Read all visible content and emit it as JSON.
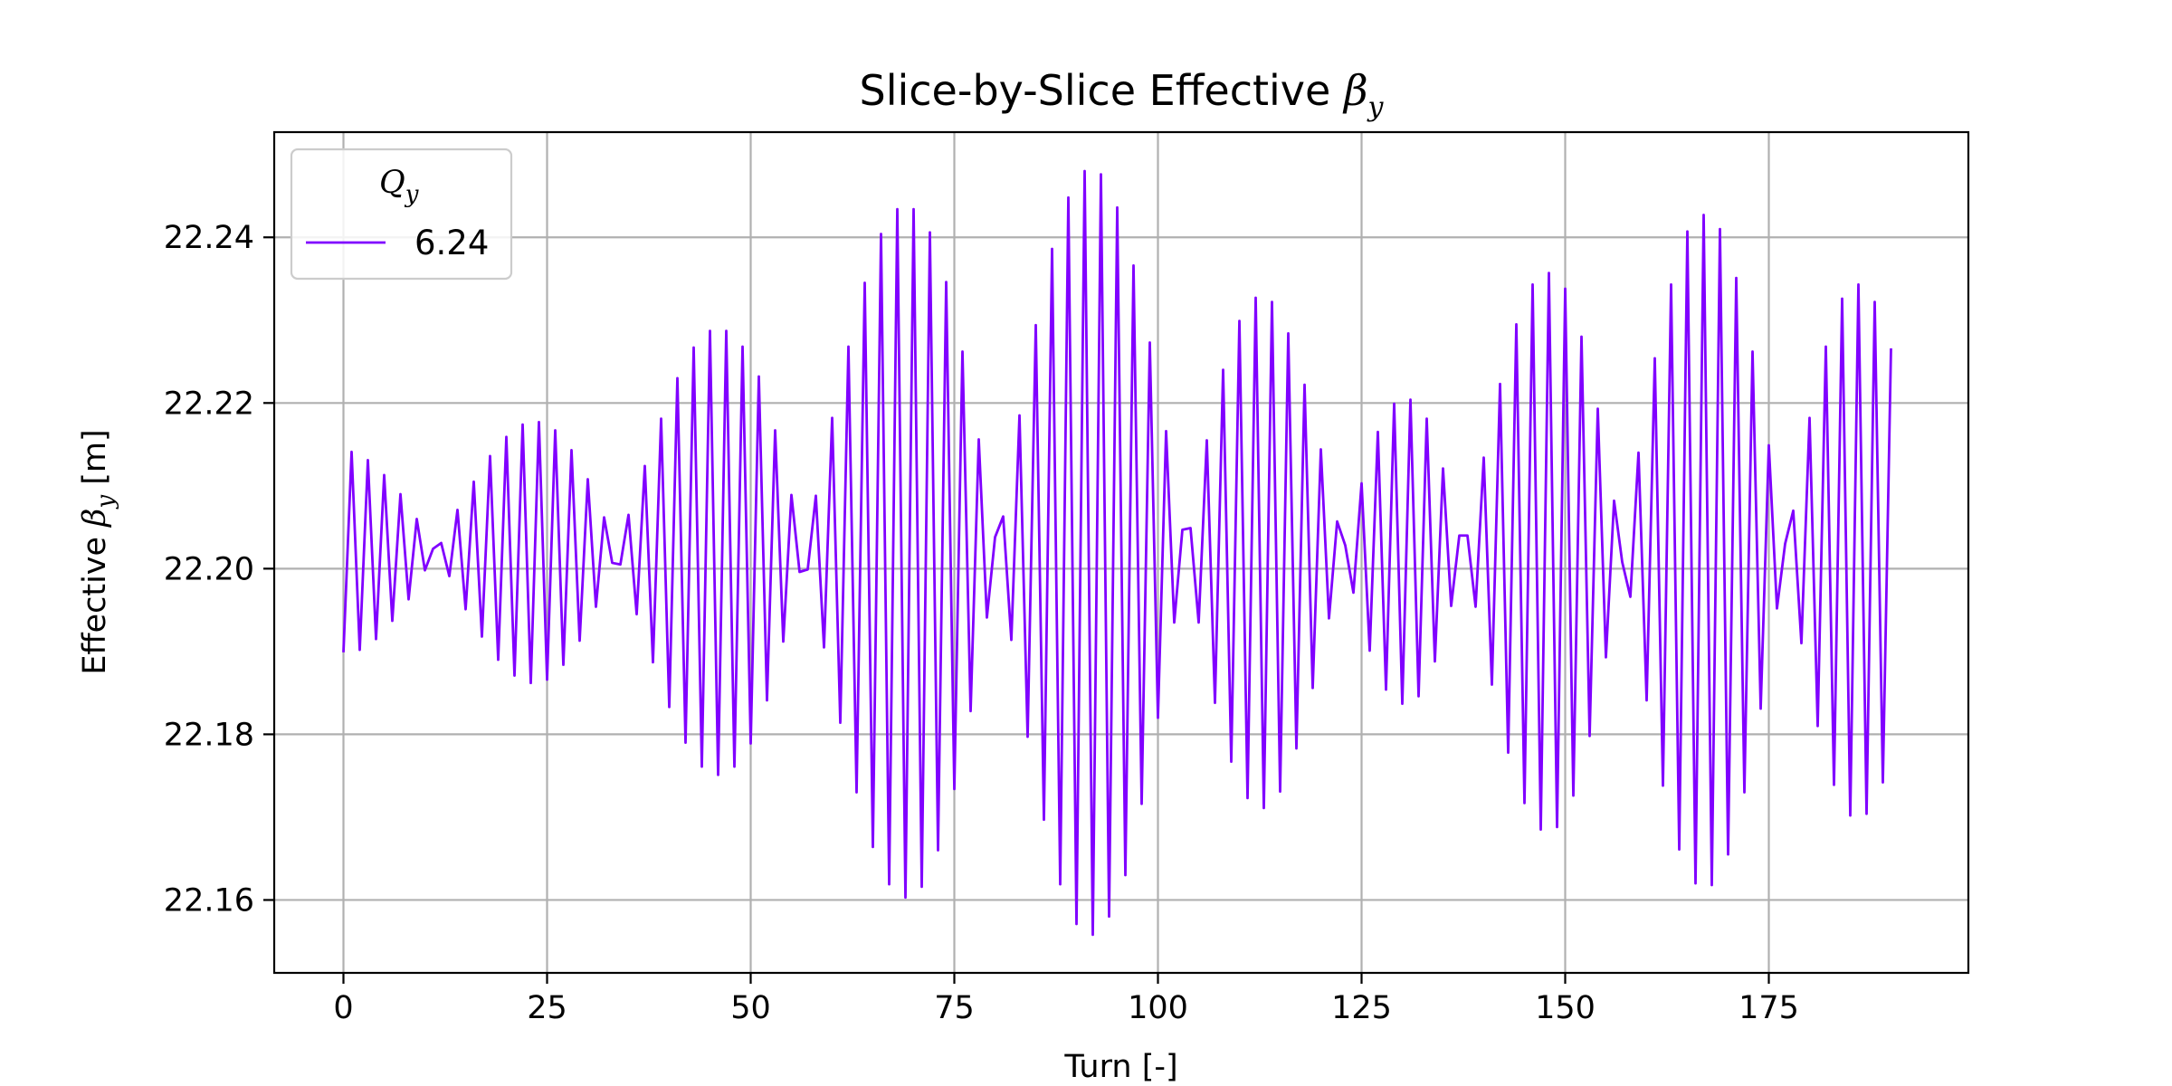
{
  "chart_data": {
    "type": "line",
    "title": "Slice-by-Slice Effective βy",
    "title_parts": {
      "prefix": "Slice-by-Slice Effective ",
      "symbol": "β",
      "subscript": "y"
    },
    "xlabel": "Turn [-]",
    "ylabel": "Effective βy [m]",
    "ylabel_parts": {
      "prefix": "Effective ",
      "symbol": "β",
      "subscript": "y",
      "suffix": " [m]"
    },
    "xlim": [
      -8.5,
      199.5
    ],
    "ylim": [
      22.1512,
      22.2527
    ],
    "x_ticks": [
      0,
      25,
      50,
      75,
      100,
      125,
      150,
      175
    ],
    "x_tick_labels": [
      "0",
      "25",
      "50",
      "75",
      "100",
      "125",
      "150",
      "175"
    ],
    "y_ticks": [
      22.16,
      22.18,
      22.2,
      22.22,
      22.24
    ],
    "y_tick_labels": [
      "22.16",
      "22.18",
      "22.20",
      "22.22",
      "22.24"
    ],
    "grid": true,
    "legend": {
      "title": "Qy",
      "title_parts": {
        "symbol": "Q",
        "subscript": "y"
      },
      "placement": "top-left"
    },
    "series": [
      {
        "name": "6.24",
        "color": "#8000ff",
        "x_start": 0,
        "x_step": 1,
        "values": [
          22.1899,
          22.2141,
          22.1902,
          22.2131,
          22.1915,
          22.2113,
          22.1937,
          22.209,
          22.1963,
          22.206,
          22.1998,
          22.2024,
          22.2031,
          22.1991,
          22.2071,
          22.1951,
          22.2105,
          22.1918,
          22.2136,
          22.189,
          22.2159,
          22.1871,
          22.2174,
          22.1862,
          22.2177,
          22.1866,
          22.2167,
          22.1884,
          22.2143,
          22.1913,
          22.2108,
          22.1954,
          22.2062,
          22.2007,
          22.2005,
          22.2065,
          22.1945,
          22.2124,
          22.1887,
          22.2181,
          22.1833,
          22.223,
          22.179,
          22.2267,
          22.1761,
          22.2287,
          22.1751,
          22.2287,
          22.1761,
          22.2268,
          22.1789,
          22.2232,
          22.1841,
          22.2167,
          22.1912,
          22.2089,
          22.1996,
          22.1999,
          22.2088,
          22.1905,
          22.2182,
          22.1814,
          22.2268,
          22.173,
          22.2345,
          22.1664,
          22.2404,
          22.1619,
          22.2434,
          22.1603,
          22.2434,
          22.1616,
          22.2406,
          22.166,
          22.2346,
          22.1734,
          22.2262,
          22.1828,
          22.2156,
          22.1941,
          22.2038,
          22.2063,
          22.1914,
          22.2185,
          22.1797,
          22.2294,
          22.1697,
          22.2386,
          22.1619,
          22.2448,
          22.1571,
          22.248,
          22.1558,
          22.2476,
          22.158,
          22.2436,
          22.163,
          22.2366,
          22.1716,
          22.2273,
          22.182,
          22.2166,
          22.1935,
          22.2047,
          22.2049,
          22.1935,
          22.2155,
          22.1838,
          22.224,
          22.1767,
          22.2299,
          22.1723,
          22.2327,
          22.1711,
          22.2322,
          22.1731,
          22.2284,
          22.1783,
          22.2222,
          22.1856,
          22.2144,
          22.194,
          22.2057,
          22.2028,
          22.1971,
          22.2103,
          22.1901,
          22.2165,
          22.1854,
          22.2199,
          22.1837,
          22.2204,
          22.1846,
          22.2181,
          22.1888,
          22.2121,
          22.1955,
          22.204,
          22.204,
          22.1954,
          22.2134,
          22.186,
          22.2223,
          22.1778,
          22.2295,
          22.1717,
          22.2343,
          22.1685,
          22.2357,
          22.1688,
          22.2338,
          22.1726,
          22.228,
          22.1798,
          22.2193,
          22.1893,
          22.2082,
          22.2008,
          22.1966,
          22.214,
          22.1841,
          22.2254,
          22.1738,
          22.2343,
          22.1661,
          22.2407,
          22.162,
          22.2427,
          22.1618,
          22.241,
          22.1655,
          22.2351,
          22.173,
          22.2262,
          22.1831,
          22.2149,
          22.1952,
          22.203,
          22.207,
          22.191,
          22.2182,
          22.181,
          22.2268,
          22.1739,
          22.2326,
          22.1702,
          22.2343,
          22.1704,
          22.2322,
          22.1742,
          22.2266
        ]
      }
    ]
  }
}
